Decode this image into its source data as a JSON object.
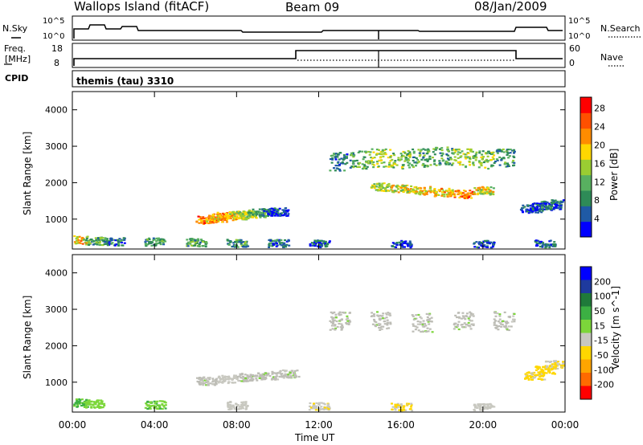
{
  "header": {
    "station": "Wallops Island (fitACF)",
    "beam": "Beam 09",
    "date": "08/Jan/2009"
  },
  "strip_panels": {
    "nsky_label": "N.Sky",
    "nsky_ticks": [
      "10^5",
      "10^0"
    ],
    "nsearch_label": "N.Search",
    "nsearch_ticks": [
      "10^5",
      "10^0"
    ],
    "freq_label_line1": "Freq.",
    "freq_label_line2": "[MHz]",
    "freq_ticks": [
      "18",
      "8"
    ],
    "nave_label": "Nave",
    "nave_ticks": [
      "60",
      "0"
    ],
    "cpid_label": "CPID",
    "cpid_text": "themis (tau) 3310"
  },
  "colors": {
    "power_scale": [
      "#0000ff",
      "#1f5aa5",
      "#2e8b57",
      "#58b060",
      "#9acd32",
      "#ffd700",
      "#ff8c00",
      "#ff5000",
      "#ff0000"
    ],
    "velocity_scale": [
      "#0000ff",
      "#1e3a9e",
      "#1f7a3a",
      "#3cb043",
      "#7cd63a",
      "#c8c8c0",
      "#ffd700",
      "#ffa500",
      "#ff6a00",
      "#ff0000"
    ],
    "ground_scatter": "#bdbdb6"
  },
  "chart_data": [
    {
      "type": "heatmap",
      "title": "Power",
      "ylabel": "Slant Range [km]",
      "xlabel": "Time UT",
      "xlim": [
        0,
        24
      ],
      "ylim": [
        180,
        4500
      ],
      "x_tick_labels": [
        "00:00",
        "04:00",
        "08:00",
        "12:00",
        "16:00",
        "20:00",
        "00:00"
      ],
      "y_tick_labels": [
        "1000",
        "2000",
        "3000",
        "4000"
      ],
      "colorbar": {
        "label": "Power [dB]",
        "ticks": [
          "4",
          "8",
          "12",
          "16",
          "20",
          "24",
          "28"
        ],
        "range": [
          0,
          30
        ]
      },
      "regions": [
        {
          "time": [
            6.5,
            7.0,
            7.5,
            8.0,
            8.5,
            9.0,
            9.5,
            10.0
          ],
          "range_km": [
            1000,
            1050,
            1100,
            1120,
            1150,
            1180,
            1200,
            1220
          ],
          "power_db": [
            28,
            26,
            25,
            22,
            20,
            16,
            12,
            8
          ]
        },
        {
          "time": [
            13.0,
            14.0,
            15.0,
            16.0,
            17.0,
            18.0,
            19.0,
            20.0,
            21.0
          ],
          "range_km": [
            2600,
            2650,
            2700,
            2650,
            2700,
            2750,
            2700,
            2650,
            2700
          ],
          "power_db": [
            12,
            16,
            20,
            18,
            16,
            16,
            20,
            18,
            14
          ]
        },
        {
          "time": [
            15.0,
            16.0,
            17.0,
            18.0,
            19.0,
            20.0
          ],
          "range_km": [
            1900,
            1850,
            1800,
            1750,
            1700,
            1800
          ],
          "power_db": [
            20,
            22,
            24,
            24,
            28,
            22
          ]
        },
        {
          "time": [
            0.2,
            1.0,
            2.0,
            4.0,
            6.0,
            8.0,
            10.0,
            12.0,
            16.0,
            20.0,
            23.0
          ],
          "range_km": [
            450,
            420,
            400,
            400,
            380,
            360,
            350,
            330,
            320,
            320,
            330
          ],
          "power_db": [
            24,
            16,
            12,
            14,
            16,
            14,
            12,
            10,
            8,
            8,
            10
          ]
        },
        {
          "time": [
            22.3,
            22.8,
            23.3,
            23.8
          ],
          "range_km": [
            1300,
            1350,
            1400,
            1450
          ],
          "power_db": [
            8,
            10,
            12,
            10
          ]
        }
      ]
    },
    {
      "type": "heatmap",
      "title": "Velocity",
      "ylabel": "Slant Range [km]",
      "xlabel": "Time UT",
      "xlim": [
        0,
        24
      ],
      "ylim": [
        180,
        4500
      ],
      "x_tick_labels": [
        "00:00",
        "04:00",
        "08:00",
        "12:00",
        "16:00",
        "20:00",
        "00:00"
      ],
      "y_tick_labels": [
        "1000",
        "2000",
        "3000",
        "4000"
      ],
      "colorbar": {
        "label": "Velocity [m s^-1]",
        "ticks": [
          "200",
          "100",
          "50",
          "15",
          "-15",
          "-50",
          "-100",
          "-200"
        ],
        "range": [
          -250,
          250
        ]
      },
      "regions": [
        {
          "time": [
            6.5,
            7.5,
            8.5,
            9.5,
            10.5
          ],
          "range_km": [
            1050,
            1100,
            1150,
            1200,
            1250
          ],
          "velocity_ms": [
            0,
            -20,
            0,
            10,
            0
          ]
        },
        {
          "time": [
            13.0,
            15.0,
            17.0,
            19.0,
            21.0
          ],
          "range_km": [
            2700,
            2700,
            2650,
            2700,
            2700
          ],
          "velocity_ms": [
            0,
            0,
            0,
            0,
            0
          ]
        },
        {
          "time": [
            0.2,
            1.0,
            4.0,
            8.0,
            12.0,
            16.0,
            20.0
          ],
          "range_km": [
            450,
            420,
            400,
            380,
            350,
            330,
            320
          ],
          "velocity_ms": [
            60,
            30,
            40,
            -20,
            -40,
            -60,
            -30
          ]
        },
        {
          "time": [
            22.5,
            23.0,
            23.5
          ],
          "range_km": [
            1200,
            1350,
            1500
          ],
          "velocity_ms": [
            -60,
            -80,
            -50
          ]
        }
      ]
    }
  ]
}
